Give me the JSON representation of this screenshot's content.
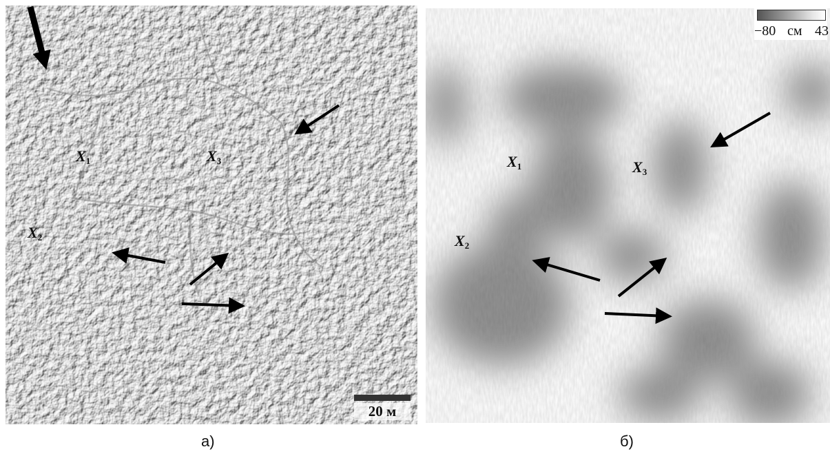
{
  "panel_a": {
    "labels": [
      {
        "letter": "X",
        "index": "1"
      },
      {
        "letter": "X",
        "index": "3"
      },
      {
        "letter": "X",
        "index": "2"
      }
    ],
    "scale_bar": "20 м",
    "caption": "а)"
  },
  "panel_b": {
    "labels": [
      {
        "letter": "X",
        "index": "1"
      },
      {
        "letter": "X",
        "index": "3"
      },
      {
        "letter": "X",
        "index": "2"
      }
    ],
    "colorbar": {
      "min": "−80",
      "unit": "см",
      "max": "43"
    },
    "caption": "б)"
  }
}
